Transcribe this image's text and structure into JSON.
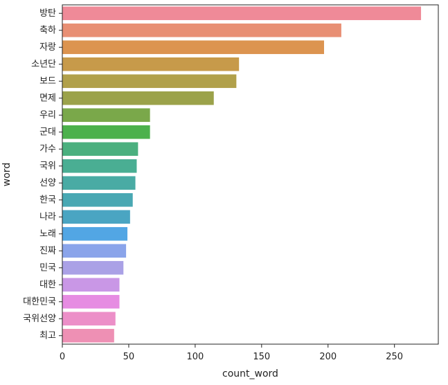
{
  "chart_data": {
    "type": "bar",
    "orientation": "horizontal",
    "title": "",
    "xlabel": "count_word",
    "ylabel": "word",
    "xlim": [
      0,
      283
    ],
    "xticks": [
      0,
      50,
      100,
      150,
      200,
      250
    ],
    "grid": false,
    "categories": [
      "방탄",
      "축하",
      "자랑",
      "소년단",
      "보드",
      "면제",
      "우리",
      "군대",
      "가수",
      "국위",
      "선양",
      "한국",
      "나라",
      "노래",
      "진짜",
      "민국",
      "대한",
      "대한민국",
      "국위선양",
      "최고"
    ],
    "values": [
      270,
      210,
      197,
      133,
      131,
      114,
      66,
      66,
      57,
      56,
      55,
      53,
      51,
      49,
      48,
      46,
      43,
      43,
      40,
      39
    ],
    "colors": [
      "#ef8a98",
      "#e88f74",
      "#dc9450",
      "#c79a4a",
      "#b1a04a",
      "#9ba24a",
      "#7aa84a",
      "#4cb14c",
      "#4bb07f",
      "#4aae93",
      "#49aba4",
      "#49a8b3",
      "#4aa5c2",
      "#52a6e4",
      "#8aa4ea",
      "#aaa1e6",
      "#c997e6",
      "#e68ce2",
      "#ec8fc8",
      "#ee90b4"
    ]
  }
}
